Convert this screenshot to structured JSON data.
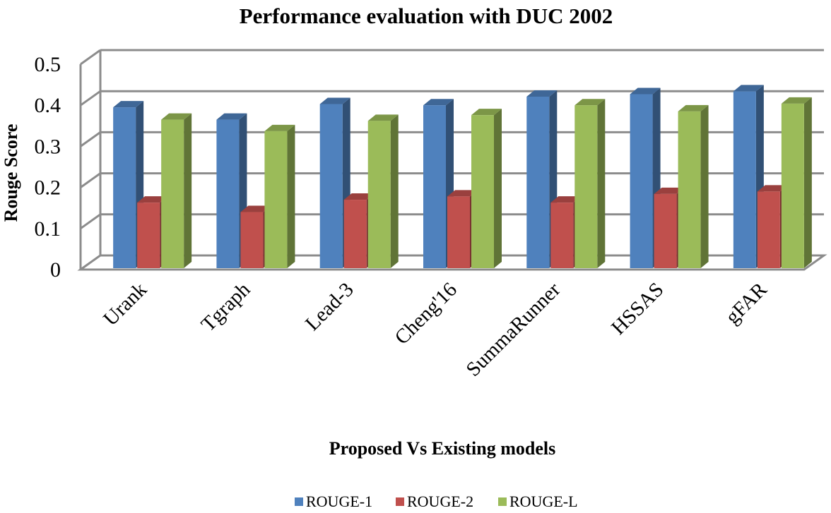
{
  "chart_data": {
    "type": "bar",
    "title": "Performance evaluation with DUC 2002",
    "xlabel": "Proposed Vs Existing models",
    "ylabel": "Rouge Score",
    "ylim": [
      0,
      0.5
    ],
    "yticks": [
      "0",
      "0.1",
      "0.2",
      "0.3",
      "0.4",
      "0.5"
    ],
    "grid": true,
    "legend_position": "bottom",
    "categories": [
      "Urank",
      "Tgraph",
      "Lead-3",
      "Cheng'16",
      "SummaRunner",
      "HSSAS",
      "gFAR"
    ],
    "series": [
      {
        "name": "ROUGE-1",
        "color": "#4F81BD",
        "values": [
          0.395,
          0.365,
          0.403,
          0.4,
          0.421,
          0.427,
          0.434
        ]
      },
      {
        "name": "ROUGE-2",
        "color": "#C0504D",
        "values": [
          0.163,
          0.14,
          0.17,
          0.178,
          0.163,
          0.184,
          0.19
        ]
      },
      {
        "name": "ROUGE-L",
        "color": "#9BBB59",
        "values": [
          0.365,
          0.337,
          0.362,
          0.376,
          0.4,
          0.385,
          0.404
        ]
      }
    ]
  }
}
